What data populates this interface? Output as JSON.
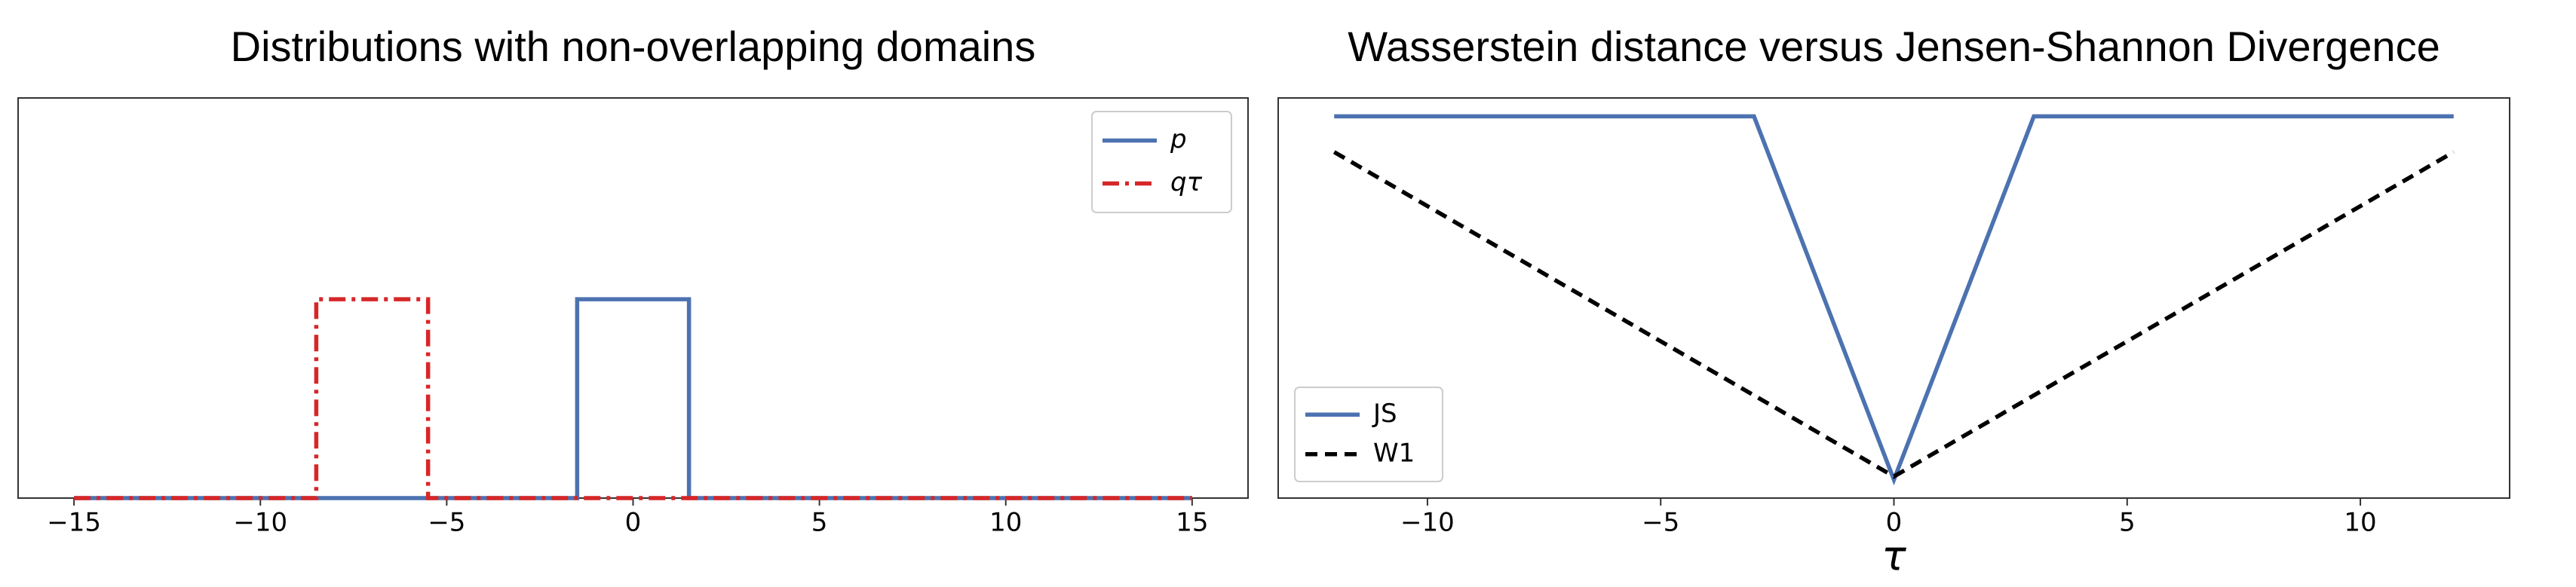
{
  "chart_data": [
    {
      "type": "line",
      "title": "Distributions with non-overlapping domains",
      "xlim": [
        -16.5,
        16.5
      ],
      "xticks": [
        {
          "value": -15,
          "label": "−15"
        },
        {
          "value": -10,
          "label": "−10"
        },
        {
          "value": -5,
          "label": "−5"
        },
        0,
        5,
        10,
        15
      ],
      "ylim": [
        0,
        0.67
      ],
      "legend": "upper right",
      "series": [
        {
          "name": "p",
          "color": "#4c72b0",
          "linestyle": "solid",
          "x": [
            -15,
            -1.5,
            -1.5,
            1.5,
            1.5,
            15
          ],
          "values": [
            0,
            0,
            0.333,
            0.333,
            0,
            0
          ]
        },
        {
          "name": "qτ",
          "color": "#d62728",
          "linestyle": "dashdot",
          "x": [
            -15,
            -8.5,
            -8.5,
            -5.5,
            -5.5,
            15
          ],
          "values": [
            0,
            0,
            0.333,
            0.333,
            0,
            0
          ]
        }
      ]
    },
    {
      "type": "line",
      "title": "Wasserstein distance versus Jensen-Shannon Divergence",
      "xlabel": "τ",
      "xlim": [
        -13.2,
        13.2
      ],
      "xticks": [
        {
          "value": -10,
          "label": "−10"
        },
        {
          "value": -5,
          "label": "−5"
        },
        0,
        5,
        10
      ],
      "ylim": [
        -0.035,
        0.728
      ],
      "y2lim": [
        -0.8,
        14.0
      ],
      "legend": "lower left",
      "series": [
        {
          "name": "JS",
          "color": "#4c72b0",
          "linestyle": "solid",
          "x": [
            -12,
            -3,
            0,
            3,
            12
          ],
          "values": [
            0.693,
            0.693,
            0,
            0.693,
            0.693
          ]
        },
        {
          "name": "W1",
          "color": "#000000",
          "linestyle": "dashed",
          "axis": "y2",
          "x": [
            -12,
            0,
            12
          ],
          "values": [
            12,
            0,
            12
          ]
        }
      ]
    }
  ]
}
